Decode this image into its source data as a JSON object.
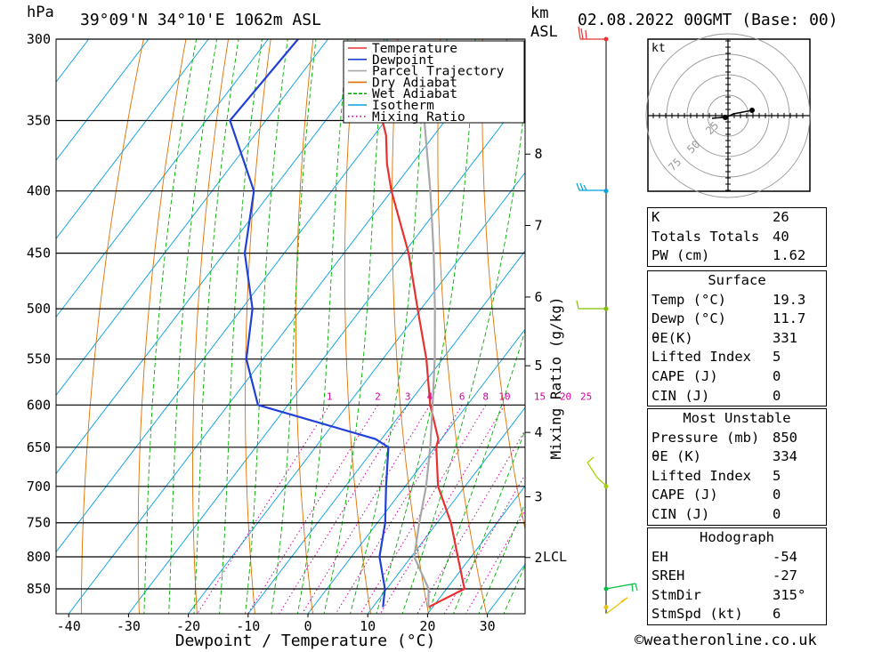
{
  "header": {
    "location": "39°09'N 34°10'E 1062m ASL",
    "datetime": "02.08.2022 00GMT (Base: 00)",
    "hpa_label": "hPa",
    "km_label": "km",
    "asl_label": "ASL"
  },
  "chart_data": {
    "type": "line",
    "subtype": "skew-T log-P diagram",
    "xlabel": "Dewpoint / Temperature (°C)",
    "ylabel": "hPa",
    "right_label": "Mixing Ratio (g/kg)",
    "xticks": [
      -40,
      -30,
      -20,
      -10,
      0,
      10,
      20,
      30
    ],
    "pressure_levels": [
      300,
      350,
      400,
      450,
      500,
      550,
      600,
      650,
      700,
      750,
      800,
      850
    ],
    "km_levels": [
      {
        "km": "8",
        "p": 373
      },
      {
        "km": "7",
        "p": 427
      },
      {
        "km": "6",
        "p": 489
      },
      {
        "km": "5",
        "p": 557
      },
      {
        "km": "4",
        "p": 632
      },
      {
        "km": "3",
        "p": 714
      },
      {
        "km": "2",
        "p": 801
      }
    ],
    "lcl": {
      "label": "LCL",
      "p": 800
    },
    "mixing_ratio_labels": [
      "1",
      "2",
      "3",
      "4",
      "6",
      "8",
      "10",
      "15",
      "20",
      "25"
    ],
    "legend": [
      "Temperature",
      "Dewpoint",
      "Parcel Trajectory",
      "Dry Adiabat",
      "Wet Adiabat",
      "Isotherm",
      "Mixing Ratio"
    ],
    "legend_position": "top-right",
    "colors": {
      "temperature": "#e83030",
      "dewpoint": "#2040d8",
      "parcel": "#a8a8a8",
      "dry_adiabat": "#e07000",
      "wet_adiabat": "#00b000",
      "isotherm": "#00a0e0",
      "mixing_ratio": "#d000a0"
    },
    "series": [
      {
        "name": "Temperature",
        "p": [
          880,
          870,
          850,
          800,
          750,
          700,
          650,
          640,
          600,
          550,
          500,
          450,
          400,
          380,
          360,
          350
        ],
        "t": [
          19.3,
          20.5,
          23,
          17.8,
          12.3,
          5.5,
          0.2,
          -0.5,
          -6.2,
          -12.7,
          -20.6,
          -29.2,
          -40,
          -44.2,
          -48,
          -50.5
        ]
      },
      {
        "name": "Dewpoint",
        "p": [
          880,
          850,
          800,
          750,
          700,
          650,
          640,
          600,
          550,
          500,
          450,
          400,
          350,
          300
        ],
        "t": [
          11.7,
          9.7,
          4.7,
          1.3,
          -3.2,
          -7.8,
          -11,
          -35,
          -42.8,
          -48.2,
          -56.6,
          -63,
          -76,
          -75
        ]
      },
      {
        "name": "Parcel Trajectory",
        "p": [
          880,
          850,
          800,
          750,
          700,
          650,
          600,
          550,
          500,
          450,
          400,
          350,
          310
        ],
        "t": [
          19.3,
          17,
          10.5,
          7,
          3.5,
          -0.8,
          -5.8,
          -11.3,
          -17.7,
          -25,
          -33.5,
          -43.5,
          -53
        ]
      }
    ]
  },
  "hodograph": {
    "unit": "kt",
    "ring_labels": [
      "25",
      "50",
      "75"
    ]
  },
  "table1": [
    {
      "k": "K",
      "v": "26"
    },
    {
      "k": "Totals Totals",
      "v": "40"
    },
    {
      "k": "PW (cm)",
      "v": "1.62"
    }
  ],
  "surface": {
    "title": "Surface",
    "rows": [
      {
        "k": "Temp (°C)",
        "v": "19.3"
      },
      {
        "k": "Dewp (°C)",
        "v": "11.7"
      },
      {
        "k": "θE(K)",
        "v": "331"
      },
      {
        "k": "Lifted Index",
        "v": "5"
      },
      {
        "k": "CAPE (J)",
        "v": "0"
      },
      {
        "k": "CIN (J)",
        "v": "0"
      }
    ]
  },
  "most_unstable": {
    "title": "Most Unstable",
    "rows": [
      {
        "k": "Pressure (mb)",
        "v": "850"
      },
      {
        "k": "θE (K)",
        "v": "334"
      },
      {
        "k": "Lifted Index",
        "v": "5"
      },
      {
        "k": "CAPE (J)",
        "v": "0"
      },
      {
        "k": "CIN (J)",
        "v": "0"
      }
    ]
  },
  "hodograph_table": {
    "title": "Hodograph",
    "rows": [
      {
        "k": "EH",
        "v": "-54"
      },
      {
        "k": "SREH",
        "v": "-27"
      },
      {
        "k": "StmDir",
        "v": "315°"
      },
      {
        "k": "StmSpd (kt)",
        "v": "6"
      }
    ]
  },
  "footer": {
    "credit": "©weatheronline.co.uk"
  }
}
